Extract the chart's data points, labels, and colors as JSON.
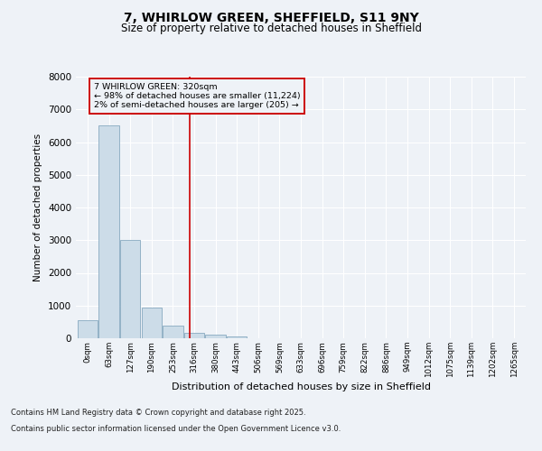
{
  "title_line1": "7, WHIRLOW GREEN, SHEFFIELD, S11 9NY",
  "title_line2": "Size of property relative to detached houses in Sheffield",
  "xlabel": "Distribution of detached houses by size in Sheffield",
  "ylabel": "Number of detached properties",
  "bar_labels": [
    "0sqm",
    "63sqm",
    "127sqm",
    "190sqm",
    "253sqm",
    "316sqm",
    "380sqm",
    "443sqm",
    "506sqm",
    "569sqm",
    "633sqm",
    "696sqm",
    "759sqm",
    "822sqm",
    "886sqm",
    "949sqm",
    "1012sqm",
    "1075sqm",
    "1139sqm",
    "1202sqm",
    "1265sqm"
  ],
  "bar_values": [
    550,
    6500,
    3000,
    950,
    380,
    175,
    100,
    55,
    0,
    0,
    0,
    0,
    0,
    0,
    0,
    0,
    0,
    0,
    0,
    0,
    0
  ],
  "bar_color": "#ccdce8",
  "bar_edge_color": "#88aac0",
  "ylim": [
    0,
    8000
  ],
  "yticks": [
    0,
    1000,
    2000,
    3000,
    4000,
    5000,
    6000,
    7000,
    8000
  ],
  "vline_x": 4.78,
  "vline_color": "#cc0000",
  "annotation_title": "7 WHIRLOW GREEN: 320sqm",
  "annotation_line1": "← 98% of detached houses are smaller (11,224)",
  "annotation_line2": "2% of semi-detached houses are larger (205) →",
  "annotation_box_color": "#cc0000",
  "footer_line1": "Contains HM Land Registry data © Crown copyright and database right 2025.",
  "footer_line2": "Contains public sector information licensed under the Open Government Licence v3.0.",
  "background_color": "#eef2f7",
  "grid_color": "#ffffff"
}
